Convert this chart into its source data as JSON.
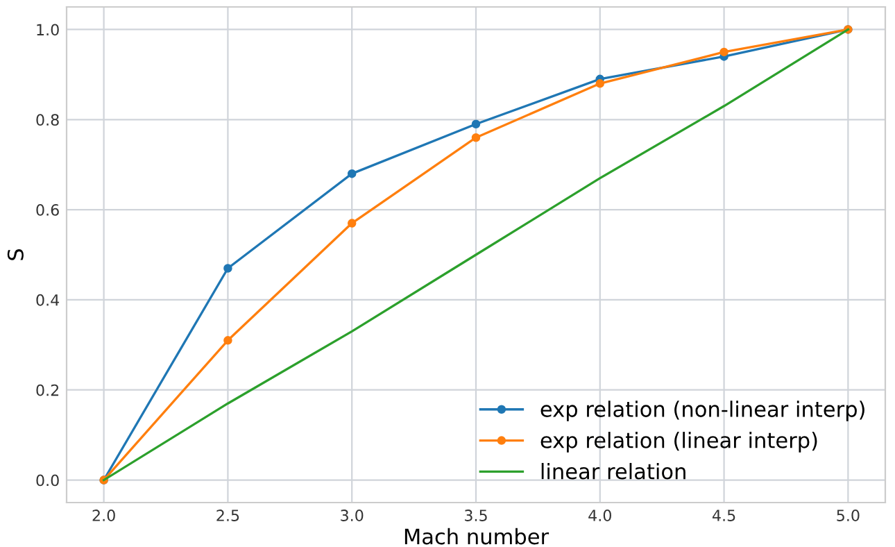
{
  "chart_data": {
    "type": "line",
    "xlabel": "Mach number",
    "ylabel": "S",
    "x": [
      2.0,
      2.5,
      3.0,
      3.5,
      4.0,
      4.5,
      5.0
    ],
    "series": [
      {
        "name": "exp relation (non-linear interp)",
        "color": "#1f77b4",
        "marker": "circle",
        "values": [
          0,
          0.47,
          0.68,
          0.79,
          0.89,
          0.94,
          1.0
        ]
      },
      {
        "name": "exp relation (linear interp)",
        "color": "#ff7f0e",
        "marker": "circle",
        "values": [
          0,
          0.31,
          0.57,
          0.76,
          0.88,
          0.95,
          1.0
        ]
      },
      {
        "name": "linear relation",
        "color": "#2ca02c",
        "marker": "none",
        "values": [
          0,
          0.17,
          0.33,
          0.5,
          0.67,
          0.83,
          1.0
        ]
      }
    ],
    "xlim": [
      1.85,
      5.15
    ],
    "ylim": [
      -0.05,
      1.05
    ],
    "xticks": [
      {
        "value": 2.0,
        "label": "2.0"
      },
      {
        "value": 2.5,
        "label": "2.5"
      },
      {
        "value": 3.0,
        "label": "3.0"
      },
      {
        "value": 3.5,
        "label": "3.5"
      },
      {
        "value": 4.0,
        "label": "4.0"
      },
      {
        "value": 4.5,
        "label": "4.5"
      },
      {
        "value": 5.0,
        "label": "5.0"
      }
    ],
    "yticks": [
      {
        "value": 0,
        "label": "0.0"
      },
      {
        "value": 0.2,
        "label": "0.2"
      },
      {
        "value": 0.4,
        "label": "0.4"
      },
      {
        "value": 0.6,
        "label": "0.6"
      },
      {
        "value": 0.8,
        "label": "0.8"
      },
      {
        "value": 1.0,
        "label": "1.0"
      }
    ],
    "grid": true,
    "legend": "bottom right",
    "line_style": "solid"
  }
}
